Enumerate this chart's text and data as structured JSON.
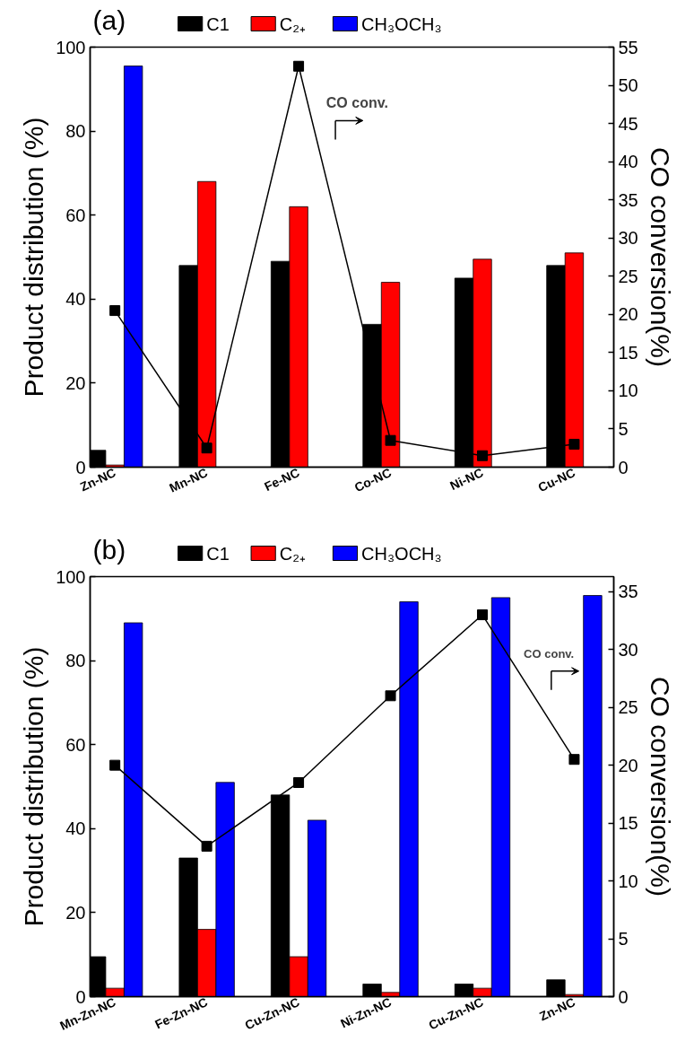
{
  "chart_data": [
    {
      "type": "bar",
      "title": "(a)",
      "categories": [
        "Zn-NC",
        "Mn-NC",
        "Fe-NC",
        "Co-NC",
        "Ni-NC",
        "Cu-NC"
      ],
      "series": [
        {
          "name": "C1",
          "color": "#000000",
          "values": [
            4,
            48,
            49,
            34,
            45,
            48
          ]
        },
        {
          "name": "C₂₊",
          "color": "#ff0000",
          "values": [
            0.5,
            68,
            62,
            44,
            49.5,
            51
          ]
        },
        {
          "name": "CH₃OCH₃",
          "color": "#0000ff",
          "values": [
            95.5,
            null,
            null,
            null,
            null,
            null
          ]
        },
        {
          "type": "line",
          "axis": "y2",
          "color": "#000000",
          "marker": "square",
          "values": [
            20.5,
            2.5,
            52.5,
            3.5,
            1.5,
            3
          ]
        }
      ],
      "ylim": [
        0,
        100
      ],
      "yticks": [
        0,
        20,
        40,
        60,
        80,
        100
      ],
      "y2lim": [
        0,
        55
      ],
      "y2ticks": [
        0,
        5,
        10,
        15,
        20,
        25,
        30,
        35,
        40,
        45,
        50,
        55
      ],
      "ylabel": "Product distribution (%)",
      "y2label": "CO conversion(%)",
      "legend": "top",
      "annotations": [
        "CO conv."
      ]
    },
    {
      "type": "bar",
      "title": "(b)",
      "categories": [
        "Mn-Zn-NC",
        "Fe-Zn-NC",
        "Cu-Zn-NC",
        "Ni-Zn-NC",
        "Cu-Zn-NC",
        "Zn-NC"
      ],
      "series": [
        {
          "name": "C1",
          "color": "#000000",
          "values": [
            9.5,
            33,
            48,
            3,
            3,
            4
          ]
        },
        {
          "name": "C₂₊",
          "color": "#ff0000",
          "values": [
            2,
            16,
            9.5,
            1,
            2,
            0.5
          ]
        },
        {
          "name": "CH₃OCH₃",
          "color": "#0000ff",
          "values": [
            89,
            51,
            42,
            94,
            95,
            95.5
          ]
        },
        {
          "type": "line",
          "axis": "y2",
          "color": "#000000",
          "marker": "square",
          "values": [
            20,
            13,
            18.5,
            26,
            33,
            20.5
          ]
        }
      ],
      "ylim": [
        0,
        100
      ],
      "yticks": [
        0,
        20,
        40,
        60,
        80,
        100
      ],
      "y2lim": [
        0,
        36.3
      ],
      "y2ticks": [
        0,
        5,
        10,
        15,
        20,
        25,
        30,
        35
      ],
      "ylabel": "Product distribution (%)",
      "y2label": "CO conversion(%)",
      "legend": "top",
      "annotations": [
        "CO conv."
      ]
    }
  ]
}
